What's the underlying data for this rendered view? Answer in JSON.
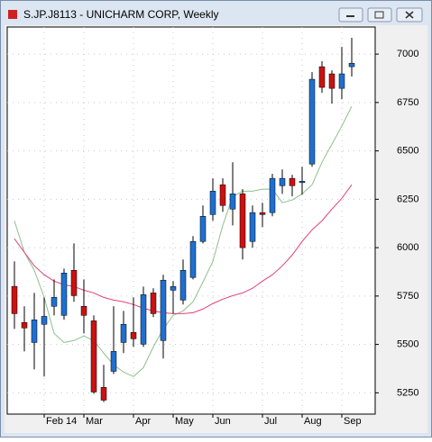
{
  "chart_data": {
    "type": "candlestick",
    "title": "S.JP.J8113 - UNICHARM CORP, Weekly",
    "categories": [
      null,
      null,
      null,
      "Feb 14",
      null,
      null,
      null,
      "Mar",
      null,
      null,
      null,
      null,
      "Apr",
      null,
      null,
      null,
      "May",
      null,
      null,
      null,
      "Jun",
      null,
      null,
      null,
      null,
      "Jul",
      null,
      null,
      null,
      "Aug",
      null,
      null,
      null,
      "Sep",
      null
    ],
    "open": [
      5800,
      5613,
      5510,
      5604,
      5697,
      5650,
      5883,
      5697,
      5622,
      5278,
      5361,
      5510,
      5562,
      5501,
      5766,
      5520,
      5780,
      5729,
      5846,
      6032,
      6171,
      6325,
      6199,
      6278,
      6032,
      6181,
      6181,
      6320,
      6358,
      6339,
      6432,
      6935,
      6898,
      6823,
      6935
    ],
    "high": [
      5929,
      5697,
      5766,
      5743,
      5836,
      5892,
      6022,
      5836,
      5650,
      5394,
      5697,
      5673,
      5743,
      5799,
      5790,
      5860,
      5827,
      5939,
      6060,
      6218,
      6358,
      6358,
      6441,
      6302,
      6218,
      6232,
      6381,
      6404,
      6376,
      6418,
      6907,
      6963,
      6916,
      7037,
      7084
    ],
    "low": [
      5580,
      5464,
      5371,
      5334,
      5650,
      5627,
      5720,
      5557,
      5245,
      5203,
      5347,
      5455,
      5487,
      5487,
      5641,
      5427,
      5659,
      5706,
      5836,
      6022,
      6139,
      6185,
      6115,
      5939,
      6000,
      6106,
      6162,
      6278,
      6265,
      6274,
      6418,
      6800,
      6744,
      6767,
      6884
    ],
    "close": [
      5659,
      5585,
      5627,
      5645,
      5743,
      5869,
      5752,
      5650,
      5254,
      5212,
      5464,
      5604,
      5529,
      5757,
      5659,
      5832,
      5799,
      5883,
      6032,
      6162,
      6292,
      6218,
      6278,
      6000,
      6181,
      6171,
      6358,
      6358,
      6320,
      6343,
      6870,
      6828,
      6823,
      6898,
      6953
    ],
    "up_color": "#1f6fd0",
    "down_color": "#cc1111",
    "lines": [
      {
        "color": "#8cc08c",
        "values": [
          6139,
          5976,
          5883,
          5743,
          5557,
          5510,
          5520,
          5543,
          5520,
          5455,
          5394,
          5357,
          5334,
          5380,
          5487,
          5580,
          5650,
          5673,
          5720,
          5822,
          5929,
          6115,
          6264,
          6292,
          6292,
          6302,
          6302,
          6232,
          6246,
          6278,
          6325,
          6441,
          6534,
          6628,
          6730
        ]
      },
      {
        "color": "#e0407a",
        "values": [
          6046,
          5976,
          5906,
          5860,
          5827,
          5808,
          5799,
          5780,
          5766,
          5743,
          5729,
          5720,
          5706,
          5687,
          5673,
          5664,
          5659,
          5659,
          5664,
          5683,
          5711,
          5734,
          5752,
          5766,
          5790,
          5827,
          5860,
          5906,
          5962,
          6032,
          6092,
          6139,
          6199,
          6255,
          6325
        ]
      }
    ],
    "ylim": [
      5140,
      7140
    ],
    "yticks": [
      5250,
      5500,
      5750,
      6000,
      6250,
      6500,
      6750,
      7000
    ],
    "grid": true
  }
}
